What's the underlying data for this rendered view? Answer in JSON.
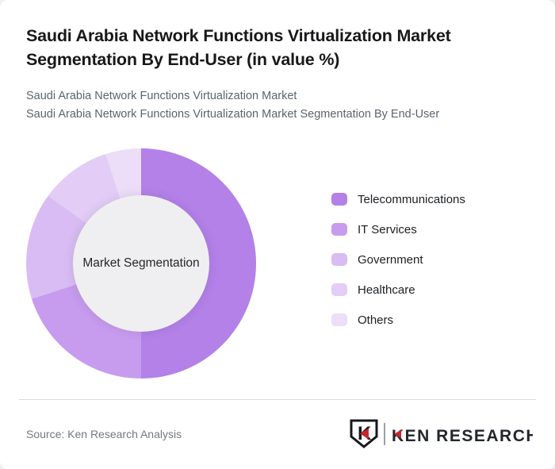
{
  "page": {
    "title_line1": "Saudi Arabia Network Functions Virtualization Market",
    "title_line2": "Segmentation By End-User (in value %)",
    "subtitle_line1": "Saudi Arabia Network Functions Virtualization Market",
    "subtitle_line2": "Saudi Arabia Network Functions Virtualization Market Segmentation By End-User"
  },
  "chart_data": {
    "type": "pie",
    "subtype": "donut",
    "title": "Saudi Arabia Network Functions Virtualization Market Segmentation By End-User (in value %)",
    "center_label": "Market Segmentation",
    "categories": [
      "Telecommunications",
      "IT Services",
      "Government",
      "Healthcare",
      "Others"
    ],
    "values": [
      50,
      20,
      15,
      10,
      5
    ],
    "unit": "%",
    "colors": [
      "#b381e8",
      "#c79bee",
      "#d8bcf3",
      "#e3cdf7",
      "#ecddf9"
    ],
    "start_angle_deg": 0,
    "direction": "clockwise",
    "inner_radius_ratio": 0.59,
    "hole_color": "#efeff1",
    "legend_position": "right"
  },
  "footer": {
    "source": "Source: Ken Research Analysis",
    "logo": {
      "brand": "KEN RESEARCH",
      "icon": "ken-shield-k-icon",
      "text_color": "#23262d",
      "accent_color": "#c9252b"
    }
  }
}
